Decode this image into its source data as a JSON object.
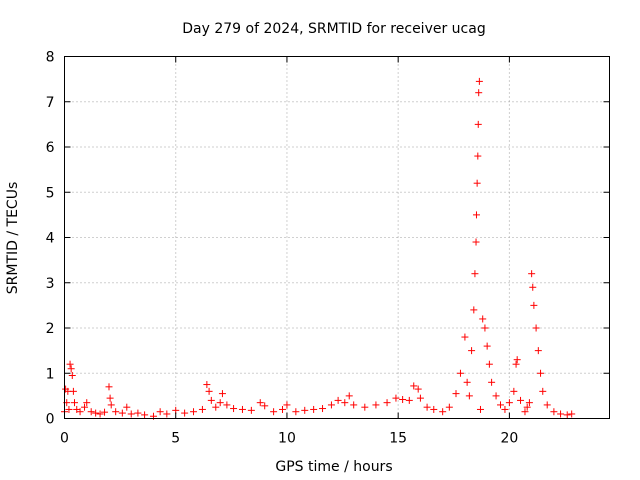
{
  "chart_data": {
    "type": "scatter",
    "title": "Day 279 of 2024, SRMTID for receiver ucag",
    "xlabel": "GPS time / hours",
    "ylabel": "SRMTID / TECUs",
    "xlim": [
      0,
      24.5
    ],
    "ylim": [
      0,
      8
    ],
    "xticks": [
      0,
      5,
      10,
      15,
      20
    ],
    "yticks": [
      0,
      1,
      2,
      3,
      4,
      5,
      6,
      7,
      8
    ],
    "grid": true,
    "marker": "plus",
    "color": "#ff0000",
    "series": [
      {
        "name": "SRMTID",
        "points": [
          [
            0.0,
            0.15
          ],
          [
            0.05,
            0.65
          ],
          [
            0.1,
            0.35
          ],
          [
            0.15,
            0.6
          ],
          [
            0.2,
            0.2
          ],
          [
            0.25,
            1.2
          ],
          [
            0.3,
            1.1
          ],
          [
            0.35,
            0.95
          ],
          [
            0.4,
            0.6
          ],
          [
            0.45,
            0.35
          ],
          [
            0.55,
            0.2
          ],
          [
            0.7,
            0.15
          ],
          [
            0.9,
            0.25
          ],
          [
            1.0,
            0.35
          ],
          [
            1.2,
            0.15
          ],
          [
            1.4,
            0.12
          ],
          [
            1.6,
            0.1
          ],
          [
            1.8,
            0.14
          ],
          [
            2.0,
            0.7
          ],
          [
            2.05,
            0.45
          ],
          [
            2.1,
            0.3
          ],
          [
            2.3,
            0.15
          ],
          [
            2.6,
            0.12
          ],
          [
            2.8,
            0.25
          ],
          [
            3.0,
            0.1
          ],
          [
            3.3,
            0.12
          ],
          [
            3.6,
            0.08
          ],
          [
            4.0,
            0.05
          ],
          [
            4.3,
            0.15
          ],
          [
            4.6,
            0.1
          ],
          [
            5.0,
            0.18
          ],
          [
            5.4,
            0.12
          ],
          [
            5.8,
            0.15
          ],
          [
            6.2,
            0.2
          ],
          [
            6.4,
            0.75
          ],
          [
            6.5,
            0.6
          ],
          [
            6.6,
            0.4
          ],
          [
            6.8,
            0.25
          ],
          [
            7.0,
            0.35
          ],
          [
            7.1,
            0.55
          ],
          [
            7.3,
            0.3
          ],
          [
            7.6,
            0.22
          ],
          [
            8.0,
            0.2
          ],
          [
            8.4,
            0.18
          ],
          [
            8.8,
            0.35
          ],
          [
            9.0,
            0.28
          ],
          [
            9.4,
            0.15
          ],
          [
            9.8,
            0.2
          ],
          [
            10.0,
            0.3
          ],
          [
            10.4,
            0.15
          ],
          [
            10.8,
            0.18
          ],
          [
            11.2,
            0.2
          ],
          [
            11.6,
            0.22
          ],
          [
            12.0,
            0.3
          ],
          [
            12.3,
            0.4
          ],
          [
            12.6,
            0.35
          ],
          [
            12.8,
            0.5
          ],
          [
            13.0,
            0.3
          ],
          [
            13.5,
            0.25
          ],
          [
            14.0,
            0.3
          ],
          [
            14.5,
            0.35
          ],
          [
            14.9,
            0.45
          ],
          [
            15.2,
            0.42
          ],
          [
            15.5,
            0.4
          ],
          [
            15.7,
            0.72
          ],
          [
            15.9,
            0.65
          ],
          [
            16.0,
            0.45
          ],
          [
            16.3,
            0.25
          ],
          [
            16.6,
            0.2
          ],
          [
            17.0,
            0.15
          ],
          [
            17.3,
            0.25
          ],
          [
            17.6,
            0.55
          ],
          [
            17.8,
            1.0
          ],
          [
            18.0,
            1.8
          ],
          [
            18.1,
            0.8
          ],
          [
            18.2,
            0.5
          ],
          [
            18.3,
            1.5
          ],
          [
            18.4,
            2.4
          ],
          [
            18.45,
            3.2
          ],
          [
            18.5,
            3.9
          ],
          [
            18.52,
            4.5
          ],
          [
            18.55,
            5.2
          ],
          [
            18.58,
            5.8
          ],
          [
            18.6,
            6.5
          ],
          [
            18.62,
            7.2
          ],
          [
            18.65,
            7.45
          ],
          [
            18.7,
            0.2
          ],
          [
            18.8,
            2.2
          ],
          [
            18.9,
            2.0
          ],
          [
            19.0,
            1.6
          ],
          [
            19.1,
            1.2
          ],
          [
            19.2,
            0.8
          ],
          [
            19.4,
            0.5
          ],
          [
            19.6,
            0.3
          ],
          [
            19.8,
            0.2
          ],
          [
            20.0,
            0.35
          ],
          [
            20.2,
            0.6
          ],
          [
            20.3,
            1.2
          ],
          [
            20.35,
            1.3
          ],
          [
            20.5,
            0.4
          ],
          [
            20.7,
            0.15
          ],
          [
            20.8,
            0.25
          ],
          [
            20.9,
            0.35
          ],
          [
            21.0,
            3.2
          ],
          [
            21.05,
            2.9
          ],
          [
            21.1,
            2.5
          ],
          [
            21.2,
            2.0
          ],
          [
            21.3,
            1.5
          ],
          [
            21.4,
            1.0
          ],
          [
            21.5,
            0.6
          ],
          [
            21.7,
            0.3
          ],
          [
            22.0,
            0.15
          ],
          [
            22.3,
            0.1
          ],
          [
            22.6,
            0.08
          ],
          [
            22.8,
            0.1
          ]
        ]
      }
    ]
  }
}
